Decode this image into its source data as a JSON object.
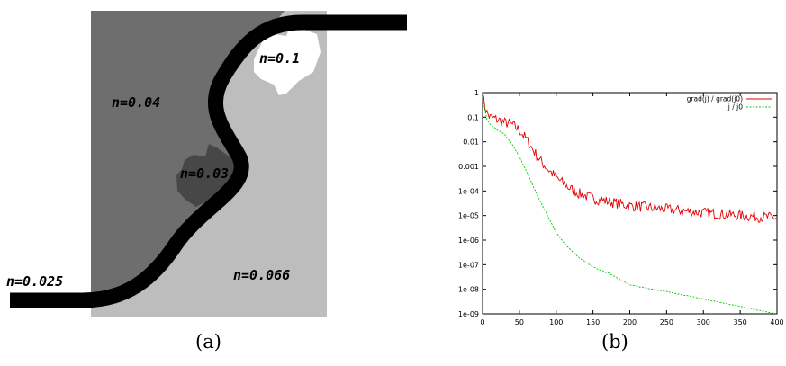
{
  "panel_a": {
    "caption": "(a)",
    "labels": {
      "upper_right": "n=0.1",
      "left": "n=0.04",
      "center": "n=0.03",
      "bottom_right": "n=0.066",
      "channel": "n=0.025"
    },
    "colors": {
      "dark_region": "#6e6e6e",
      "light_region": "#bdbdbd",
      "small_patch": "#474747",
      "white_patch": "#ffffff",
      "river": "#000000"
    }
  },
  "panel_b": {
    "caption": "(b)",
    "chart_data": {
      "type": "line",
      "title": "",
      "xlabel": "",
      "ylabel": "",
      "xlim": [
        0,
        400
      ],
      "ylim": [
        1e-09,
        1
      ],
      "yscale": "log",
      "grid": false,
      "legend_position": "top-right",
      "x_ticks": [
        "0",
        "50",
        "100",
        "150",
        "200",
        "250",
        "300",
        "350",
        "400"
      ],
      "y_ticks": [
        "1",
        "0.1",
        "0.01",
        "0.001",
        "1e-04",
        "1e-05",
        "1e-06",
        "1e-07",
        "1e-08",
        "1e-09"
      ],
      "series": [
        {
          "name": "grad(j) / grad(j0)",
          "color": "#e00000",
          "x": [
            0,
            3,
            6,
            10,
            20,
            30,
            40,
            50,
            60,
            70,
            80,
            90,
            100,
            110,
            120,
            130,
            150,
            175,
            200,
            250,
            300,
            350,
            400
          ],
          "y": [
            0.8,
            0.3,
            0.15,
            0.1,
            0.08,
            0.06,
            0.05,
            0.03,
            0.012,
            0.004,
            0.0015,
            0.0007,
            0.00035,
            0.0002,
            0.00012,
            8e-05,
            5e-05,
            3.5e-05,
            2.5e-05,
            1.8e-05,
            1.3e-05,
            1e-05,
            8e-06
          ],
          "noise": "high"
        },
        {
          "name": "j / j0",
          "color": "#00c800",
          "x": [
            0,
            3,
            6,
            10,
            20,
            30,
            40,
            50,
            60,
            70,
            80,
            90,
            100,
            110,
            120,
            130,
            150,
            175,
            200,
            250,
            300,
            350,
            400
          ],
          "y": [
            0.7,
            0.2,
            0.08,
            0.05,
            0.03,
            0.02,
            0.008,
            0.0025,
            0.0006,
            0.00013,
            3e-05,
            8e-06,
            2e-06,
            8e-07,
            4e-07,
            2e-07,
            8e-08,
            4e-08,
            1.5e-08,
            8e-09,
            4e-09,
            2e-09,
            1e-09
          ],
          "noise": "low"
        }
      ]
    }
  }
}
